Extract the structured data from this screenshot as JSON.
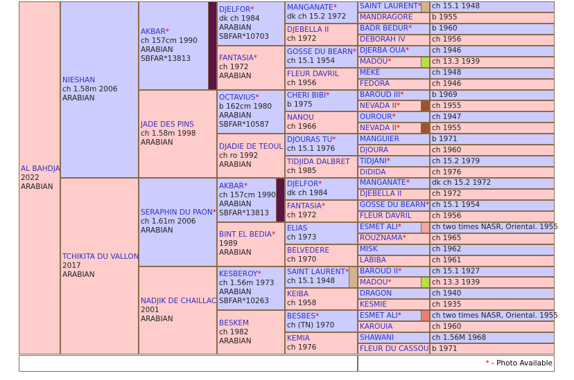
{
  "horse": {
    "name": "AL BAHDJA",
    "lines": [
      "2022",
      "ARABIAN"
    ]
  },
  "gen1": [
    {
      "name": "NIESHAN",
      "lines": [
        "ch 1.58m 2006",
        "ARABIAN"
      ]
    },
    {
      "name": "TCHIKITA DU VALLON",
      "lines": [
        "2017",
        "ARABIAN"
      ]
    }
  ],
  "gen2": [
    {
      "name": "AKBAR",
      "star": "*",
      "lines": [
        "ch 157cm 1990",
        "ARABIAN",
        "SBFAR*13813"
      ],
      "swatch": "#5a1446"
    },
    {
      "name": "JADE DES PINS",
      "lines": [
        "ch 1.58m 1998",
        "ARABIAN"
      ]
    },
    {
      "name": "SERAPHIN DU PAON",
      "star": "*",
      "lines": [
        "ch 1.61m 2006",
        "ARABIAN"
      ]
    },
    {
      "name": "NADJIK DE CHAILLAC",
      "lines": [
        "2001",
        "ARABIAN"
      ]
    }
  ],
  "gen3": [
    {
      "name": "DJELFOR",
      "star": "*",
      "lines": [
        "dk ch 1984",
        "ARABIAN",
        "SBFAR*10703"
      ]
    },
    {
      "name": "FANTASIA",
      "star": "*",
      "lines": [
        "ch 1972",
        "ARABIAN"
      ]
    },
    {
      "name": "OCTAVIUS",
      "star": "*",
      "lines": [
        "b 162cm 1980",
        "ARABIAN",
        "SBFAR*10587"
      ]
    },
    {
      "name": "DJADIE DE TEOUL",
      "lines": [
        "ch ro 1992",
        "ARABIAN"
      ]
    },
    {
      "name": "AKBAR",
      "star": "*",
      "lines": [
        "ch 157cm 1990",
        "ARABIAN",
        "SBFAR*13813"
      ],
      "swatch": "#5a1446"
    },
    {
      "name": "BINT EL BEDIA",
      "star": "*",
      "lines": [
        "1989",
        "ARABIAN"
      ]
    },
    {
      "name": "KESBEROY",
      "star": "*",
      "lines": [
        "ch 1.56m 1973",
        "ARABIAN",
        "SBFAR*10263"
      ]
    },
    {
      "name": "BESKEM",
      "lines": [
        "ch 1982",
        "ARABIAN"
      ]
    }
  ],
  "gen4": [
    {
      "name": "MANGANATE",
      "star": "*",
      "lines": [
        "dk ch 15.2 1972"
      ]
    },
    {
      "name": "DJEBELLA II",
      "lines": [
        "ch 1972"
      ]
    },
    {
      "name": "GOSSE DU BEARN",
      "star": "*",
      "lines": [
        "ch 15.1 1954"
      ]
    },
    {
      "name": "FLEUR DAVRIL",
      "lines": [
        "ch 1956"
      ]
    },
    {
      "name": "CHERI BIBI",
      "star": "*",
      "lines": [
        "b 1975"
      ]
    },
    {
      "name": "NANOU",
      "lines": [
        "ch 1966"
      ]
    },
    {
      "name": "DJOURAS TU",
      "star": "*",
      "lines": [
        "ch 15.1 1976"
      ]
    },
    {
      "name": "TIDJIDA DALBRET",
      "lines": [
        "ch 1985"
      ]
    },
    {
      "name": "DJELFOR",
      "star": "*",
      "lines": [
        "dk ch 1984"
      ]
    },
    {
      "name": "FANTASIA",
      "star": "*",
      "lines": [
        "ch 1972"
      ]
    },
    {
      "name": "ELIAS",
      "lines": [
        "ch 1973"
      ]
    },
    {
      "name": "BELVEDERE",
      "lines": [
        "ch 1970"
      ]
    },
    {
      "name": "SAINT LAURENT",
      "star": "*",
      "lines": [
        "ch 15.1 1948"
      ],
      "swatch": "#d2b48c"
    },
    {
      "name": "KEIBA",
      "lines": [
        "ch 1958"
      ]
    },
    {
      "name": "BESBES",
      "star": "*",
      "lines": [
        "ch (TN) 1970"
      ]
    },
    {
      "name": "KEMIA",
      "lines": [
        "ch 1976"
      ]
    }
  ],
  "gen5": [
    {
      "name": "SAINT LAURENT",
      "star": "*",
      "detail": "ch 15.1 1948",
      "swatch": "#d2b48c"
    },
    {
      "name": "MANDRAGORE",
      "detail": "b 1955"
    },
    {
      "name": "BADR BEDUR",
      "star": "*",
      "detail": "b 1960"
    },
    {
      "name": "DEBORAH IV",
      "detail": "ch 1956"
    },
    {
      "name": "DJERBA OUA",
      "star": "*",
      "detail": "ch 1946"
    },
    {
      "name": "MADOU",
      "star": "*",
      "detail": "ch 13.3 1939",
      "swatch": "#b5e04a"
    },
    {
      "name": "MEKE",
      "detail": "ch 1948"
    },
    {
      "name": "FEDORA",
      "detail": "ch 1946"
    },
    {
      "name": "BAROUD III",
      "star": "*",
      "detail": "b 1969"
    },
    {
      "name": "NEVADA II",
      "star": "*",
      "detail": "ch 1955",
      "swatch": "#a0522d"
    },
    {
      "name": "OUROUR",
      "star": "*",
      "detail": "ch 1947"
    },
    {
      "name": "NEVADA II",
      "star": "*",
      "detail": "ch 1955",
      "swatch": "#a0522d"
    },
    {
      "name": "MANGUIER",
      "detail": "b 1971"
    },
    {
      "name": "DJOURA",
      "detail": "ch 1960"
    },
    {
      "name": "TIDJANI",
      "star": "*",
      "detail": "ch 15.2 1979"
    },
    {
      "name": "DIDIDA",
      "detail": "ch 1976"
    },
    {
      "name": "MANGANATE",
      "star": "*",
      "detail": "dk ch 15.2 1972"
    },
    {
      "name": "DJEBELLA II",
      "detail": "ch 1972"
    },
    {
      "name": "GOSSE DU BEARN",
      "star": "*",
      "detail": "ch 15.1 1954"
    },
    {
      "name": "FLEUR DAVRIL",
      "detail": "ch 1956"
    },
    {
      "name": "ESMET ALI",
      "star": "*",
      "detail": "ch two times NASR, Oriental. 1955",
      "swatch": "#f4a6a0"
    },
    {
      "name": "ROUZNAMA",
      "star": "*",
      "detail": "ch 1965"
    },
    {
      "name": "MISK",
      "detail": "ch 1962"
    },
    {
      "name": "LABIBA",
      "detail": "ch 1961"
    },
    {
      "name": "BAROUD II",
      "star": "*",
      "detail": "ch 15.1 1927"
    },
    {
      "name": "MADOU",
      "star": "*",
      "detail": "ch 13.3 1939",
      "swatch": "#b5e04a"
    },
    {
      "name": "DRAGON",
      "detail": "ch 1940"
    },
    {
      "name": "KESMIE",
      "detail": "ch 1935"
    },
    {
      "name": "ESMET ALI",
      "star": "*",
      "detail": "ch two times NASR, Oriental. 1955",
      "swatch": "#e8806a"
    },
    {
      "name": "KAROUIA",
      "detail": "ch 1960"
    },
    {
      "name": "SHAWANI",
      "detail": "ch 1.56M 1968"
    },
    {
      "name": "FLEUR DU CASSOU",
      "detail": "b 1971"
    }
  ],
  "footer": {
    "star": "*",
    "text": " - Photo Available"
  }
}
